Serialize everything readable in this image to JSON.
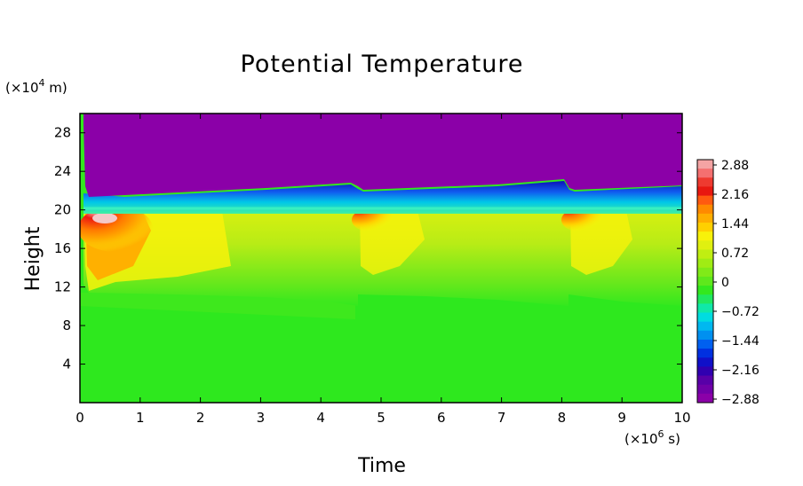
{
  "chart_data": {
    "type": "heatmap",
    "title": "Potential Temperature",
    "xlabel": "Time",
    "ylabel": "Height",
    "x_unit_prefix": "(×10",
    "x_unit_exp": "6",
    "x_unit_suffix": " s)",
    "y_unit_prefix": "(×10",
    "y_unit_exp": "4",
    "y_unit_suffix": " m)",
    "xlim": [
      0,
      10
    ],
    "ylim": [
      0,
      30
    ],
    "x_ticks": [
      "0",
      "1",
      "2",
      "3",
      "4",
      "5",
      "6",
      "7",
      "8",
      "9",
      "10"
    ],
    "y_ticks": [
      "4",
      "8",
      "12",
      "16",
      "20",
      "24",
      "28"
    ],
    "colorbar": {
      "ticks": [
        "2.88",
        "2.16",
        "1.44",
        "0.72",
        "0",
        "−0.72",
        "−1.44",
        "−2.16",
        "−2.88"
      ],
      "range": [
        -2.88,
        2.88
      ]
    },
    "regions": [
      {
        "x": [
          0.0,
          10.0
        ],
        "y": [
          22.0,
          30.0
        ],
        "value": -2.88
      },
      {
        "x": [
          0.0,
          10.0
        ],
        "y": [
          20.0,
          22.0
        ],
        "value": -1.8
      },
      {
        "x": [
          0.0,
          4.6
        ],
        "y": [
          11.0,
          20.0
        ],
        "value": 0.9
      },
      {
        "x": [
          0.1,
          1.0
        ],
        "y": [
          17.0,
          20.0
        ],
        "value": 2.3
      },
      {
        "x": [
          4.6,
          8.1
        ],
        "y": [
          11.0,
          20.0
        ],
        "value": 0.6
      },
      {
        "x": [
          4.6,
          5.2
        ],
        "y": [
          18.5,
          20.0
        ],
        "value": 2.2
      },
      {
        "x": [
          8.1,
          10.0
        ],
        "y": [
          11.0,
          20.0
        ],
        "value": 0.6
      },
      {
        "x": [
          8.1,
          8.8
        ],
        "y": [
          18.5,
          20.0
        ],
        "value": 2.2
      },
      {
        "x": [
          0.0,
          10.0
        ],
        "y": [
          0.0,
          11.0
        ],
        "value": 0.0
      }
    ],
    "colors": {
      "stratosphere": "#8b00a8",
      "deep_blue": "#0a1ec8",
      "cyan": "#00d4e8",
      "green": "#33e81e",
      "yellow_green": "#a8ee14",
      "yellow": "#f8f20a",
      "orange": "#ff8a00",
      "red": "#ee1a10",
      "pink": "#f4a0a0"
    }
  }
}
